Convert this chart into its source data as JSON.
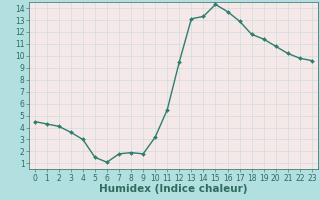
{
  "xlabel": "Humidex (Indice chaleur)",
  "x": [
    0,
    1,
    2,
    3,
    4,
    5,
    6,
    7,
    8,
    9,
    10,
    11,
    12,
    13,
    14,
    15,
    16,
    17,
    18,
    19,
    20,
    21,
    22,
    23
  ],
  "y": [
    4.5,
    4.3,
    4.1,
    3.6,
    3.0,
    1.5,
    1.1,
    1.8,
    1.9,
    1.8,
    3.2,
    5.5,
    9.5,
    13.1,
    13.3,
    14.3,
    13.7,
    12.9,
    11.8,
    11.4,
    10.8,
    10.2,
    9.8,
    9.6
  ],
  "line_color": "#2e7d6e",
  "marker": "D",
  "marker_size": 2.0,
  "line_width": 1.0,
  "background_color": "#b2e0e0",
  "grid_color": "#c8d8d8",
  "grid_color_minor": "#dce8e8",
  "ylim": [
    0.5,
    14.5
  ],
  "xlim": [
    -0.5,
    23.5
  ],
  "yticks": [
    1,
    2,
    3,
    4,
    5,
    6,
    7,
    8,
    9,
    10,
    11,
    12,
    13,
    14
  ],
  "xticks": [
    0,
    1,
    2,
    3,
    4,
    5,
    6,
    7,
    8,
    9,
    10,
    11,
    12,
    13,
    14,
    15,
    16,
    17,
    18,
    19,
    20,
    21,
    22,
    23
  ],
  "tick_color": "#2e6b60",
  "label_color": "#2e6b60",
  "xlabel_fontsize": 7.5,
  "tick_fontsize": 5.5,
  "plot_area_color": "#f5e8e8"
}
